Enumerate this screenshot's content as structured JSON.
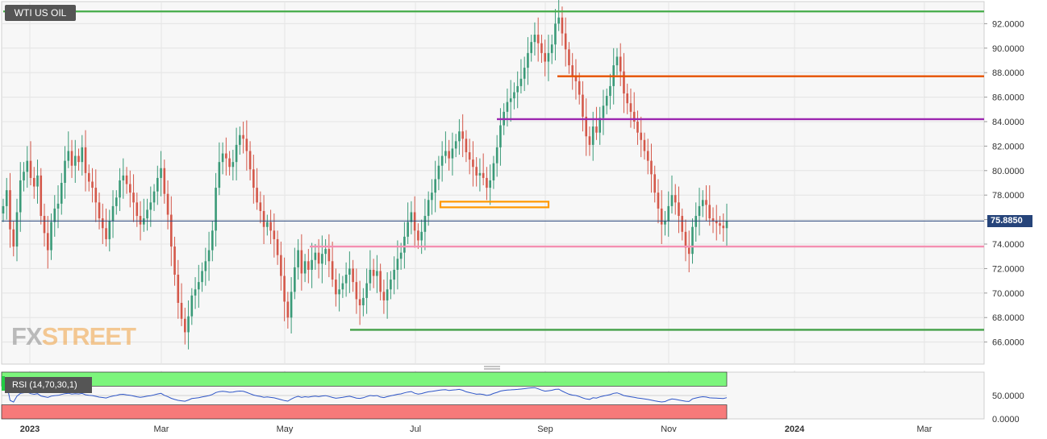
{
  "chart_data": [
    {
      "type": "candlestick",
      "title": "WTI US OIL",
      "last_price": "75.8850",
      "x_ticks": [
        "2023",
        "Mar",
        "May",
        "Jul",
        "Sep",
        "Nov",
        "2024",
        "Mar"
      ],
      "y_ticks": [
        "66.0000",
        "68.0000",
        "70.0000",
        "72.0000",
        "74.0000",
        "76.0000",
        "78.0000",
        "80.0000",
        "82.0000",
        "84.0000",
        "86.0000",
        "88.0000",
        "90.0000",
        "92.0000"
      ],
      "ylim": [
        64.2,
        93.8
      ],
      "series_close": [
        77.1,
        78.4,
        75.2,
        73.8,
        76.6,
        79.2,
        79.9,
        80.8,
        79.4,
        78.7,
        79.6,
        76.3,
        74.9,
        73.5,
        75.8,
        76.9,
        77.3,
        79.0,
        80.8,
        81.6,
        80.4,
        81.2,
        80.7,
        81.9,
        79.8,
        79.1,
        78.6,
        77.4,
        76.1,
        75.3,
        74.4,
        75.9,
        77.1,
        77.8,
        79.2,
        79.6,
        78.9,
        78.2,
        77.4,
        76.3,
        75.6,
        76.1,
        76.8,
        77.4,
        78.3,
        79.4,
        80.2,
        78.1,
        76.4,
        73.8,
        71.5,
        69.2,
        67.9,
        66.8,
        68.1,
        69.8,
        70.3,
        70.9,
        71.8,
        72.6,
        73.5,
        75.1,
        78.6,
        80.7,
        81.4,
        81.0,
        80.3,
        80.7,
        82.1,
        82.9,
        82.6,
        81.6,
        80.1,
        78.6,
        77.4,
        76.7,
        75.4,
        75.8,
        75.1,
        74.4,
        73.1,
        71.4,
        69.3,
        68.0,
        70.1,
        72.1,
        73.5,
        71.6,
        72.6,
        71.9,
        72.7,
        73.3,
        72.4,
        73.2,
        73.6,
        72.6,
        71.1,
        69.9,
        70.3,
        70.8,
        71.5,
        72.0,
        70.9,
        69.5,
        69.0,
        69.6,
        70.8,
        71.9,
        71.4,
        71.8,
        70.1,
        69.4,
        70.3,
        71.1,
        71.9,
        72.8,
        73.3,
        74.6,
        75.8,
        76.6,
        75.1,
        74.3,
        75.0,
        76.3,
        77.6,
        78.2,
        79.3,
        80.4,
        81.2,
        81.6,
        81.0,
        81.8,
        82.4,
        83.2,
        82.6,
        81.5,
        80.9,
        80.3,
        79.6,
        79.8,
        79.4,
        78.6,
        79.2,
        80.6,
        81.9,
        83.7,
        84.8,
        85.6,
        85.9,
        86.4,
        86.9,
        87.5,
        88.4,
        89.6,
        90.5,
        91.1,
        90.4,
        89.6,
        88.9,
        89.6,
        90.3,
        92.0,
        92.5,
        91.2,
        89.9,
        88.6,
        87.7,
        87.3,
        86.2,
        84.4,
        82.8,
        82.1,
        83.6,
        83.1,
        84.3,
        85.3,
        86.1,
        86.9,
        88.6,
        89.3,
        88.1,
        86.3,
        85.5,
        84.8,
        84.0,
        83.1,
        82.5,
        81.6,
        80.8,
        79.7,
        78.2,
        76.9,
        75.6,
        75.9,
        77.1,
        78.0,
        77.4,
        76.3,
        75.0,
        73.7,
        73.2,
        75.4,
        76.3,
        77.1,
        77.6,
        77.2,
        76.1,
        75.9,
        75.7,
        75.5,
        75.3,
        75.9
      ],
      "rsi": {
        "label": "RSI (14,70,30,1)",
        "y_ticks": [
          "50.0000",
          "0.0000"
        ],
        "ylim": [
          0,
          100
        ],
        "overbought": 70,
        "oversold": 30
      },
      "horizontal_levels": [
        {
          "color": "#4caf50",
          "value": 93.0
        },
        {
          "color": "#e65100",
          "value": 87.7
        },
        {
          "color": "#9c27b0",
          "value": 84.2
        },
        {
          "color": "#ff9800",
          "value": 77.2
        },
        {
          "color": "#f48fb1",
          "value": 73.8
        },
        {
          "color": "#43a047",
          "value": 67.0
        }
      ],
      "watermark": "FXSTREET"
    }
  ]
}
